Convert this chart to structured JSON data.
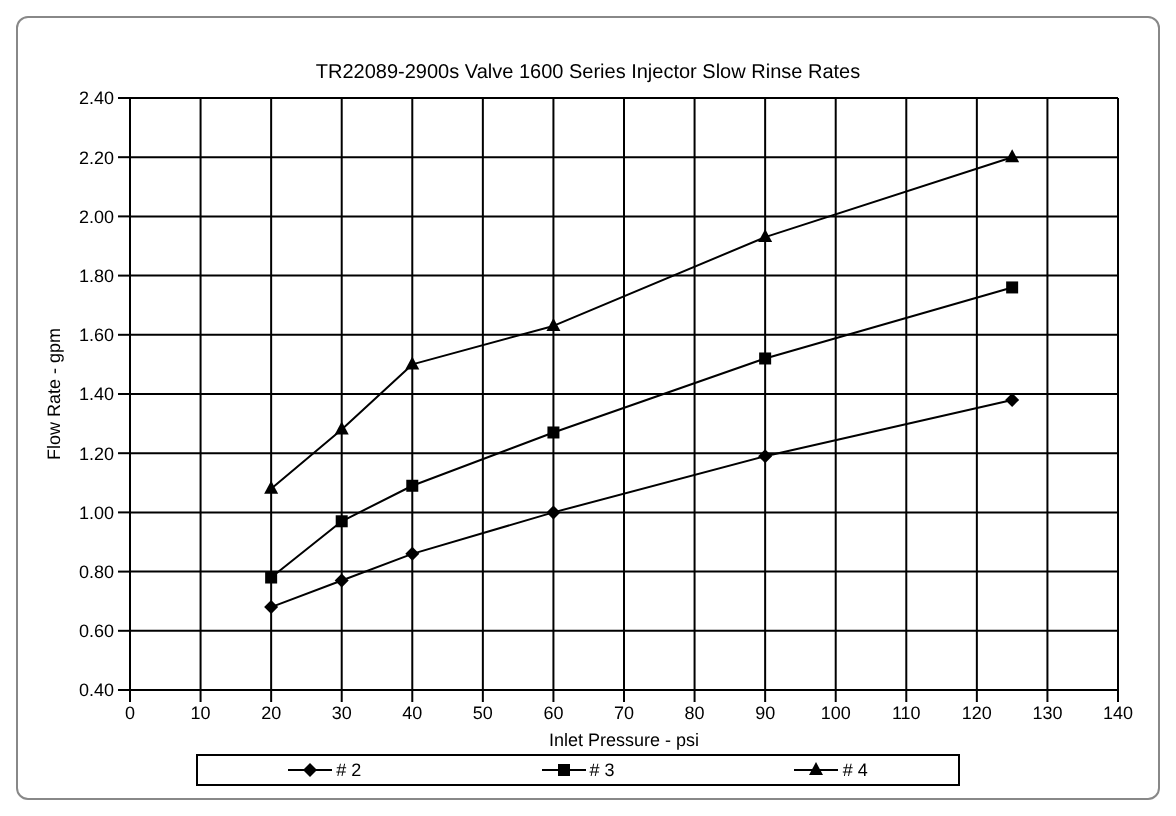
{
  "chart_data": {
    "type": "line",
    "title": "TR22089-2900s Valve 1600 Series Injector Slow Rinse Rates",
    "xlabel": "Inlet Pressure - psi",
    "ylabel": "Flow Rate - gpm",
    "x": [
      20,
      30,
      40,
      60,
      90,
      125
    ],
    "series": [
      {
        "name": "# 2",
        "color": "#000000",
        "marker": "diamond",
        "values": [
          0.68,
          0.77,
          0.86,
          1.0,
          1.19,
          1.38
        ]
      },
      {
        "name": "# 3",
        "color": "#000000",
        "marker": "square",
        "values": [
          0.78,
          0.97,
          1.09,
          1.27,
          1.52,
          1.76
        ]
      },
      {
        "name": "# 4",
        "color": "#000000",
        "marker": "triangle",
        "values": [
          1.08,
          1.28,
          1.5,
          1.63,
          1.93,
          2.2
        ]
      }
    ],
    "xlim": [
      0,
      140
    ],
    "xticks": [
      0,
      10,
      20,
      30,
      40,
      50,
      60,
      70,
      80,
      90,
      100,
      110,
      120,
      130,
      140
    ],
    "ylim": [
      0.4,
      2.4
    ],
    "yticks": [
      {
        "value": 0.4,
        "label": "0.40"
      },
      {
        "value": 0.6,
        "label": "0.60"
      },
      {
        "value": 0.8,
        "label": "0.80"
      },
      {
        "value": 1.0,
        "label": "1.00"
      },
      {
        "value": 1.2,
        "label": "1.20"
      },
      {
        "value": 1.4,
        "label": "1.40"
      },
      {
        "value": 1.6,
        "label": "1.60"
      },
      {
        "value": 1.8,
        "label": "1.80"
      },
      {
        "value": 2.0,
        "label": "2.00"
      },
      {
        "value": 2.2,
        "label": "2.20"
      },
      {
        "value": 2.4,
        "label": "2.40"
      }
    ],
    "grid": true,
    "legend": "bottom",
    "line_style": "solid"
  }
}
